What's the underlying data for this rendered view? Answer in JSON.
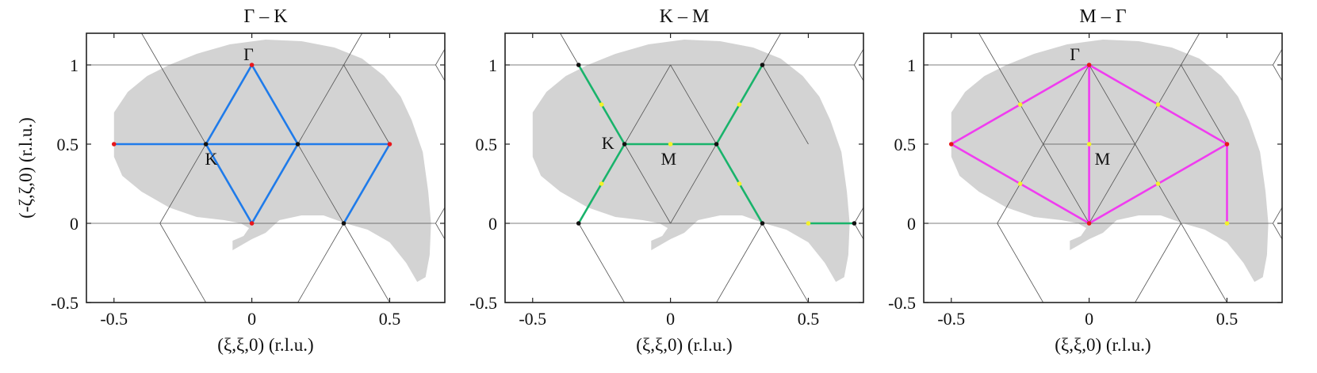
{
  "chart_data": [
    {
      "type": "line",
      "title": "Γ – K",
      "xlabel": "(ξ,ξ,0) (r.l.u.)",
      "ylabel": "(-ζ,ζ,0) (r.l.u.)",
      "xlim": [
        -0.6,
        0.7
      ],
      "ylim": [
        -0.5,
        1.2
      ],
      "xticks": [
        -0.5,
        0,
        0.5
      ],
      "yticks": [
        -0.5,
        0,
        0.5,
        1
      ],
      "xtick_labels": [
        "-0.5",
        "0",
        "0.5"
      ],
      "ytick_labels": [
        "-0.5",
        "0",
        "0.5",
        "1"
      ],
      "grid": false,
      "path_color": "#1f7bea",
      "path_segments": [
        [
          [
            -0.5,
            0.5
          ],
          [
            0.5,
            0.5
          ]
        ],
        [
          [
            0,
            0
          ],
          [
            -0.1667,
            0.5
          ],
          [
            0,
            1
          ],
          [
            0.1667,
            0.5
          ],
          [
            0,
            0
          ]
        ],
        [
          [
            0.5,
            0.5
          ],
          [
            0.3333,
            0
          ]
        ]
      ],
      "points": [
        {
          "x": 0,
          "y": 1,
          "color": "red"
        },
        {
          "x": 0,
          "y": 0,
          "color": "red"
        },
        {
          "x": -0.5,
          "y": 0.5,
          "color": "red"
        },
        {
          "x": 0.5,
          "y": 0.5,
          "color": "red"
        },
        {
          "x": -0.1667,
          "y": 0.5,
          "color": "black"
        },
        {
          "x": 0.1667,
          "y": 0.5,
          "color": "black"
        },
        {
          "x": 0.3333,
          "y": 0,
          "color": "black"
        }
      ],
      "annotations": [
        {
          "text": "Γ",
          "x": -0.03,
          "y": 1.03
        },
        {
          "text": "K",
          "x": -0.17,
          "y": 0.37
        }
      ]
    },
    {
      "type": "line",
      "title": "K – M",
      "xlabel": "(ξ,ξ,0) (r.l.u.)",
      "ylabel": "",
      "xlim": [
        -0.6,
        0.7
      ],
      "ylim": [
        -0.5,
        1.2
      ],
      "xticks": [
        -0.5,
        0,
        0.5
      ],
      "yticks": [
        -0.5,
        0,
        0.5,
        1
      ],
      "xtick_labels": [
        "-0.5",
        "0",
        "0.5"
      ],
      "ytick_labels": [
        "-0.5",
        "0",
        "0.5",
        "1"
      ],
      "grid": false,
      "path_color": "#19b36b",
      "path_segments": [
        [
          [
            -0.3333,
            1
          ],
          [
            -0.1667,
            0.5
          ],
          [
            0.1667,
            0.5
          ],
          [
            0.3333,
            1
          ]
        ],
        [
          [
            -0.1667,
            0.5
          ],
          [
            -0.3333,
            0
          ]
        ],
        [
          [
            0.1667,
            0.5
          ],
          [
            0.3333,
            0
          ]
        ],
        [
          [
            0.5,
            0
          ],
          [
            0.6667,
            0
          ]
        ]
      ],
      "points": [
        {
          "x": -0.3333,
          "y": 1,
          "color": "black"
        },
        {
          "x": 0.3333,
          "y": 1,
          "color": "black"
        },
        {
          "x": -0.1667,
          "y": 0.5,
          "color": "black"
        },
        {
          "x": 0.1667,
          "y": 0.5,
          "color": "black"
        },
        {
          "x": -0.3333,
          "y": 0,
          "color": "black"
        },
        {
          "x": 0.3333,
          "y": 0,
          "color": "black"
        },
        {
          "x": 0.6667,
          "y": 0,
          "color": "black"
        },
        {
          "x": 0,
          "y": 0.5,
          "color": "yellow"
        },
        {
          "x": -0.25,
          "y": 0.75,
          "color": "yellow"
        },
        {
          "x": 0.25,
          "y": 0.75,
          "color": "yellow"
        },
        {
          "x": -0.25,
          "y": 0.25,
          "color": "yellow"
        },
        {
          "x": 0.25,
          "y": 0.25,
          "color": "yellow"
        },
        {
          "x": 0.5,
          "y": 0,
          "color": "yellow"
        }
      ],
      "annotations": [
        {
          "text": "K",
          "x": -0.25,
          "y": 0.47
        },
        {
          "text": "M",
          "x": -0.035,
          "y": 0.37
        }
      ]
    },
    {
      "type": "line",
      "title": "M – Γ",
      "xlabel": "(ξ,ξ,0) (r.l.u.)",
      "ylabel": "",
      "xlim": [
        -0.6,
        0.7
      ],
      "ylim": [
        -0.5,
        1.2
      ],
      "xticks": [
        -0.5,
        0,
        0.5
      ],
      "yticks": [
        -0.5,
        0,
        0.5,
        1
      ],
      "xtick_labels": [
        "-0.5",
        "0",
        "0.5"
      ],
      "ytick_labels": [
        "-0.5",
        "0",
        "0.5",
        "1"
      ],
      "grid": false,
      "path_color": "#f03cf0",
      "path_segments": [
        [
          [
            -0.5,
            0.5
          ],
          [
            0,
            1
          ],
          [
            0.5,
            0.5
          ],
          [
            0,
            0
          ],
          [
            -0.5,
            0.5
          ]
        ],
        [
          [
            0,
            1
          ],
          [
            0,
            0
          ]
        ],
        [
          [
            0.5,
            0.5
          ],
          [
            0.5,
            0
          ]
        ]
      ],
      "points": [
        {
          "x": 0,
          "y": 1,
          "color": "red"
        },
        {
          "x": 0,
          "y": 0,
          "color": "red"
        },
        {
          "x": -0.5,
          "y": 0.5,
          "color": "red"
        },
        {
          "x": 0.5,
          "y": 0.5,
          "color": "red"
        },
        {
          "x": 0,
          "y": 0.5,
          "color": "yellow"
        },
        {
          "x": -0.25,
          "y": 0.75,
          "color": "yellow"
        },
        {
          "x": 0.25,
          "y": 0.75,
          "color": "yellow"
        },
        {
          "x": -0.25,
          "y": 0.25,
          "color": "yellow"
        },
        {
          "x": 0.25,
          "y": 0.25,
          "color": "yellow"
        },
        {
          "x": 0.5,
          "y": 0,
          "color": "yellow"
        }
      ],
      "annotations": [
        {
          "text": "Γ",
          "x": -0.07,
          "y": 1.03
        },
        {
          "text": "M",
          "x": 0.02,
          "y": 0.37
        }
      ]
    }
  ],
  "coverage_region": {
    "color": "#d3d3d3",
    "outline": [
      [
        -0.5,
        0.42
      ],
      [
        -0.5,
        0.7
      ],
      [
        -0.45,
        0.83
      ],
      [
        -0.38,
        0.93
      ],
      [
        -0.3,
        1.0
      ],
      [
        -0.2,
        1.07
      ],
      [
        -0.08,
        1.13
      ],
      [
        0.05,
        1.16
      ],
      [
        0.18,
        1.15
      ],
      [
        0.3,
        1.11
      ],
      [
        0.4,
        1.04
      ],
      [
        0.48,
        0.93
      ],
      [
        0.54,
        0.8
      ],
      [
        0.58,
        0.65
      ],
      [
        0.62,
        0.45
      ],
      [
        0.64,
        0.2
      ],
      [
        0.65,
        0.0
      ],
      [
        0.645,
        -0.2
      ],
      [
        0.63,
        -0.34
      ],
      [
        0.6,
        -0.37
      ],
      [
        0.56,
        -0.25
      ],
      [
        0.5,
        -0.12
      ],
      [
        0.42,
        -0.04
      ],
      [
        0.34,
        0.0
      ],
      [
        0.26,
        0.05
      ],
      [
        0.18,
        0.05
      ],
      [
        0.1,
        0.02
      ],
      [
        0.05,
        -0.06
      ],
      [
        0.0,
        -0.1
      ],
      [
        -0.07,
        -0.17
      ],
      [
        -0.07,
        -0.11
      ],
      [
        -0.03,
        -0.08
      ],
      [
        -0.01,
        -0.03
      ],
      [
        -0.04,
        0.0
      ],
      [
        -0.1,
        0.02
      ],
      [
        -0.2,
        0.04
      ],
      [
        -0.3,
        0.1
      ],
      [
        -0.4,
        0.2
      ],
      [
        -0.47,
        0.3
      ]
    ]
  },
  "brillouin_zone_lines": {
    "color": "#555555",
    "segments": [
      [
        [
          -0.3333,
          0
        ],
        [
          -0.1667,
          0.5
        ]
      ],
      [
        [
          -0.1667,
          0.5
        ],
        [
          -0.3333,
          1
        ]
      ],
      [
        [
          -0.3333,
          1
        ],
        [
          0.3333,
          1
        ]
      ],
      [
        [
          0.3333,
          1
        ],
        [
          0.1667,
          0.5
        ]
      ],
      [
        [
          0.1667,
          0.5
        ],
        [
          0.3333,
          0
        ]
      ],
      [
        [
          0.3333,
          0
        ],
        [
          -0.3333,
          0
        ]
      ],
      [
        [
          -0.1667,
          0.5
        ],
        [
          0.1667,
          0.5
        ]
      ],
      [
        [
          -0.1667,
          0.5
        ],
        [
          0,
          0
        ]
      ],
      [
        [
          0.1667,
          0.5
        ],
        [
          0,
          0
        ]
      ],
      [
        [
          -0.1667,
          0.5
        ],
        [
          0,
          1
        ]
      ],
      [
        [
          0.1667,
          0.5
        ],
        [
          0,
          1
        ]
      ],
      [
        [
          -0.6,
          1
        ],
        [
          -0.3333,
          1
        ]
      ],
      [
        [
          -0.6,
          0
        ],
        [
          -0.3333,
          0
        ]
      ],
      [
        [
          0.3333,
          1
        ],
        [
          0.6667,
          1
        ]
      ],
      [
        [
          0.3333,
          0
        ],
        [
          0.6667,
          0
        ]
      ],
      [
        [
          -0.3333,
          1
        ],
        [
          -0.4,
          1.2
        ]
      ],
      [
        [
          0.3333,
          1
        ],
        [
          0.4,
          1.2
        ]
      ],
      [
        [
          -0.3333,
          0
        ],
        [
          -0.1667,
          -0.5
        ]
      ],
      [
        [
          0.3333,
          0
        ],
        [
          0.1667,
          -0.5
        ]
      ],
      [
        [
          0.3333,
          0
        ],
        [
          0.5,
          -0.5
        ]
      ],
      [
        [
          0.3333,
          1
        ],
        [
          0.5,
          0.5
        ]
      ],
      [
        [
          0.6667,
          1
        ],
        [
          0.7,
          1.1
        ]
      ],
      [
        [
          0.6667,
          1
        ],
        [
          0.7,
          0.9
        ]
      ],
      [
        [
          0.6667,
          0
        ],
        [
          0.7,
          0.1
        ]
      ],
      [
        [
          0.6667,
          0
        ],
        [
          0.7,
          -0.1
        ]
      ]
    ]
  },
  "colors": {
    "red_point": "#e8161b",
    "black_point": "#111111",
    "yellow_point": "#f2f22a",
    "axes": "#222222"
  }
}
